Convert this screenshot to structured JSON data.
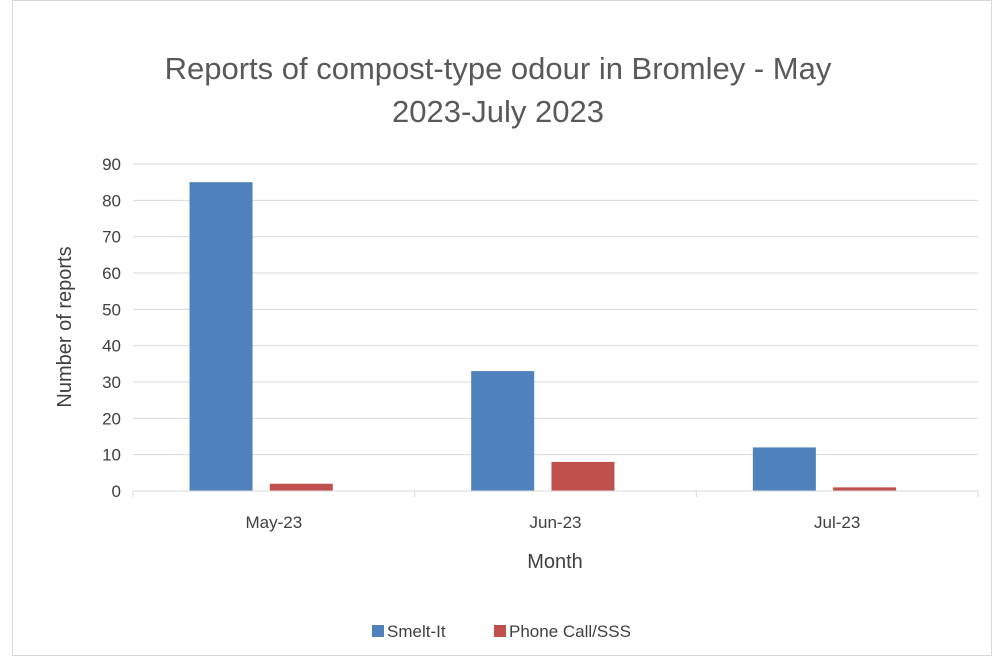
{
  "chart_data": {
    "type": "bar",
    "title": "Reports of compost-type odour in Bromley - May 2023-July 2023",
    "title_lines": [
      "Reports of compost-type odour in Bromley - May",
      "2023-July 2023"
    ],
    "xlabel": "Month",
    "ylabel": "Number of reports",
    "categories": [
      "May-23",
      "Jun-23",
      "Jul-23"
    ],
    "series": [
      {
        "name": "Smelt-It",
        "color": "#4f81bd",
        "values": [
          85,
          33,
          12
        ]
      },
      {
        "name": "Phone Call/SSS",
        "color": "#c0504d",
        "values": [
          2,
          8,
          1
        ]
      }
    ],
    "ylim": [
      0,
      90
    ],
    "yticks": [
      0,
      10,
      20,
      30,
      40,
      50,
      60,
      70,
      80,
      90
    ],
    "grid": true,
    "legend_position": "bottom"
  }
}
